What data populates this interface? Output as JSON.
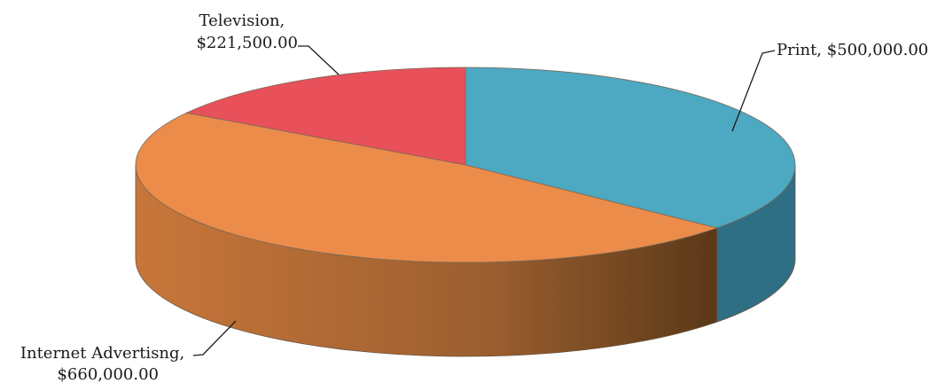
{
  "chart_data": {
    "type": "pie",
    "style": "3d",
    "title": "",
    "slices": [
      {
        "name": "Print",
        "value": 500000,
        "label": "Print,  $500,000.00",
        "color": "#4da8c1",
        "side_color": "#2f6f85"
      },
      {
        "name": "Internet Advertisng",
        "value": 660000,
        "label_lines": [
          "Internet Advertisng,",
          "$660,000.00"
        ],
        "color": "#eb8c4a",
        "side_color": "#b5672f"
      },
      {
        "name": "Television",
        "value": 221500,
        "label_lines": [
          "Television,",
          "$221,500.00"
        ],
        "color": "#e8505a",
        "side_color": "#a83a40"
      }
    ]
  }
}
